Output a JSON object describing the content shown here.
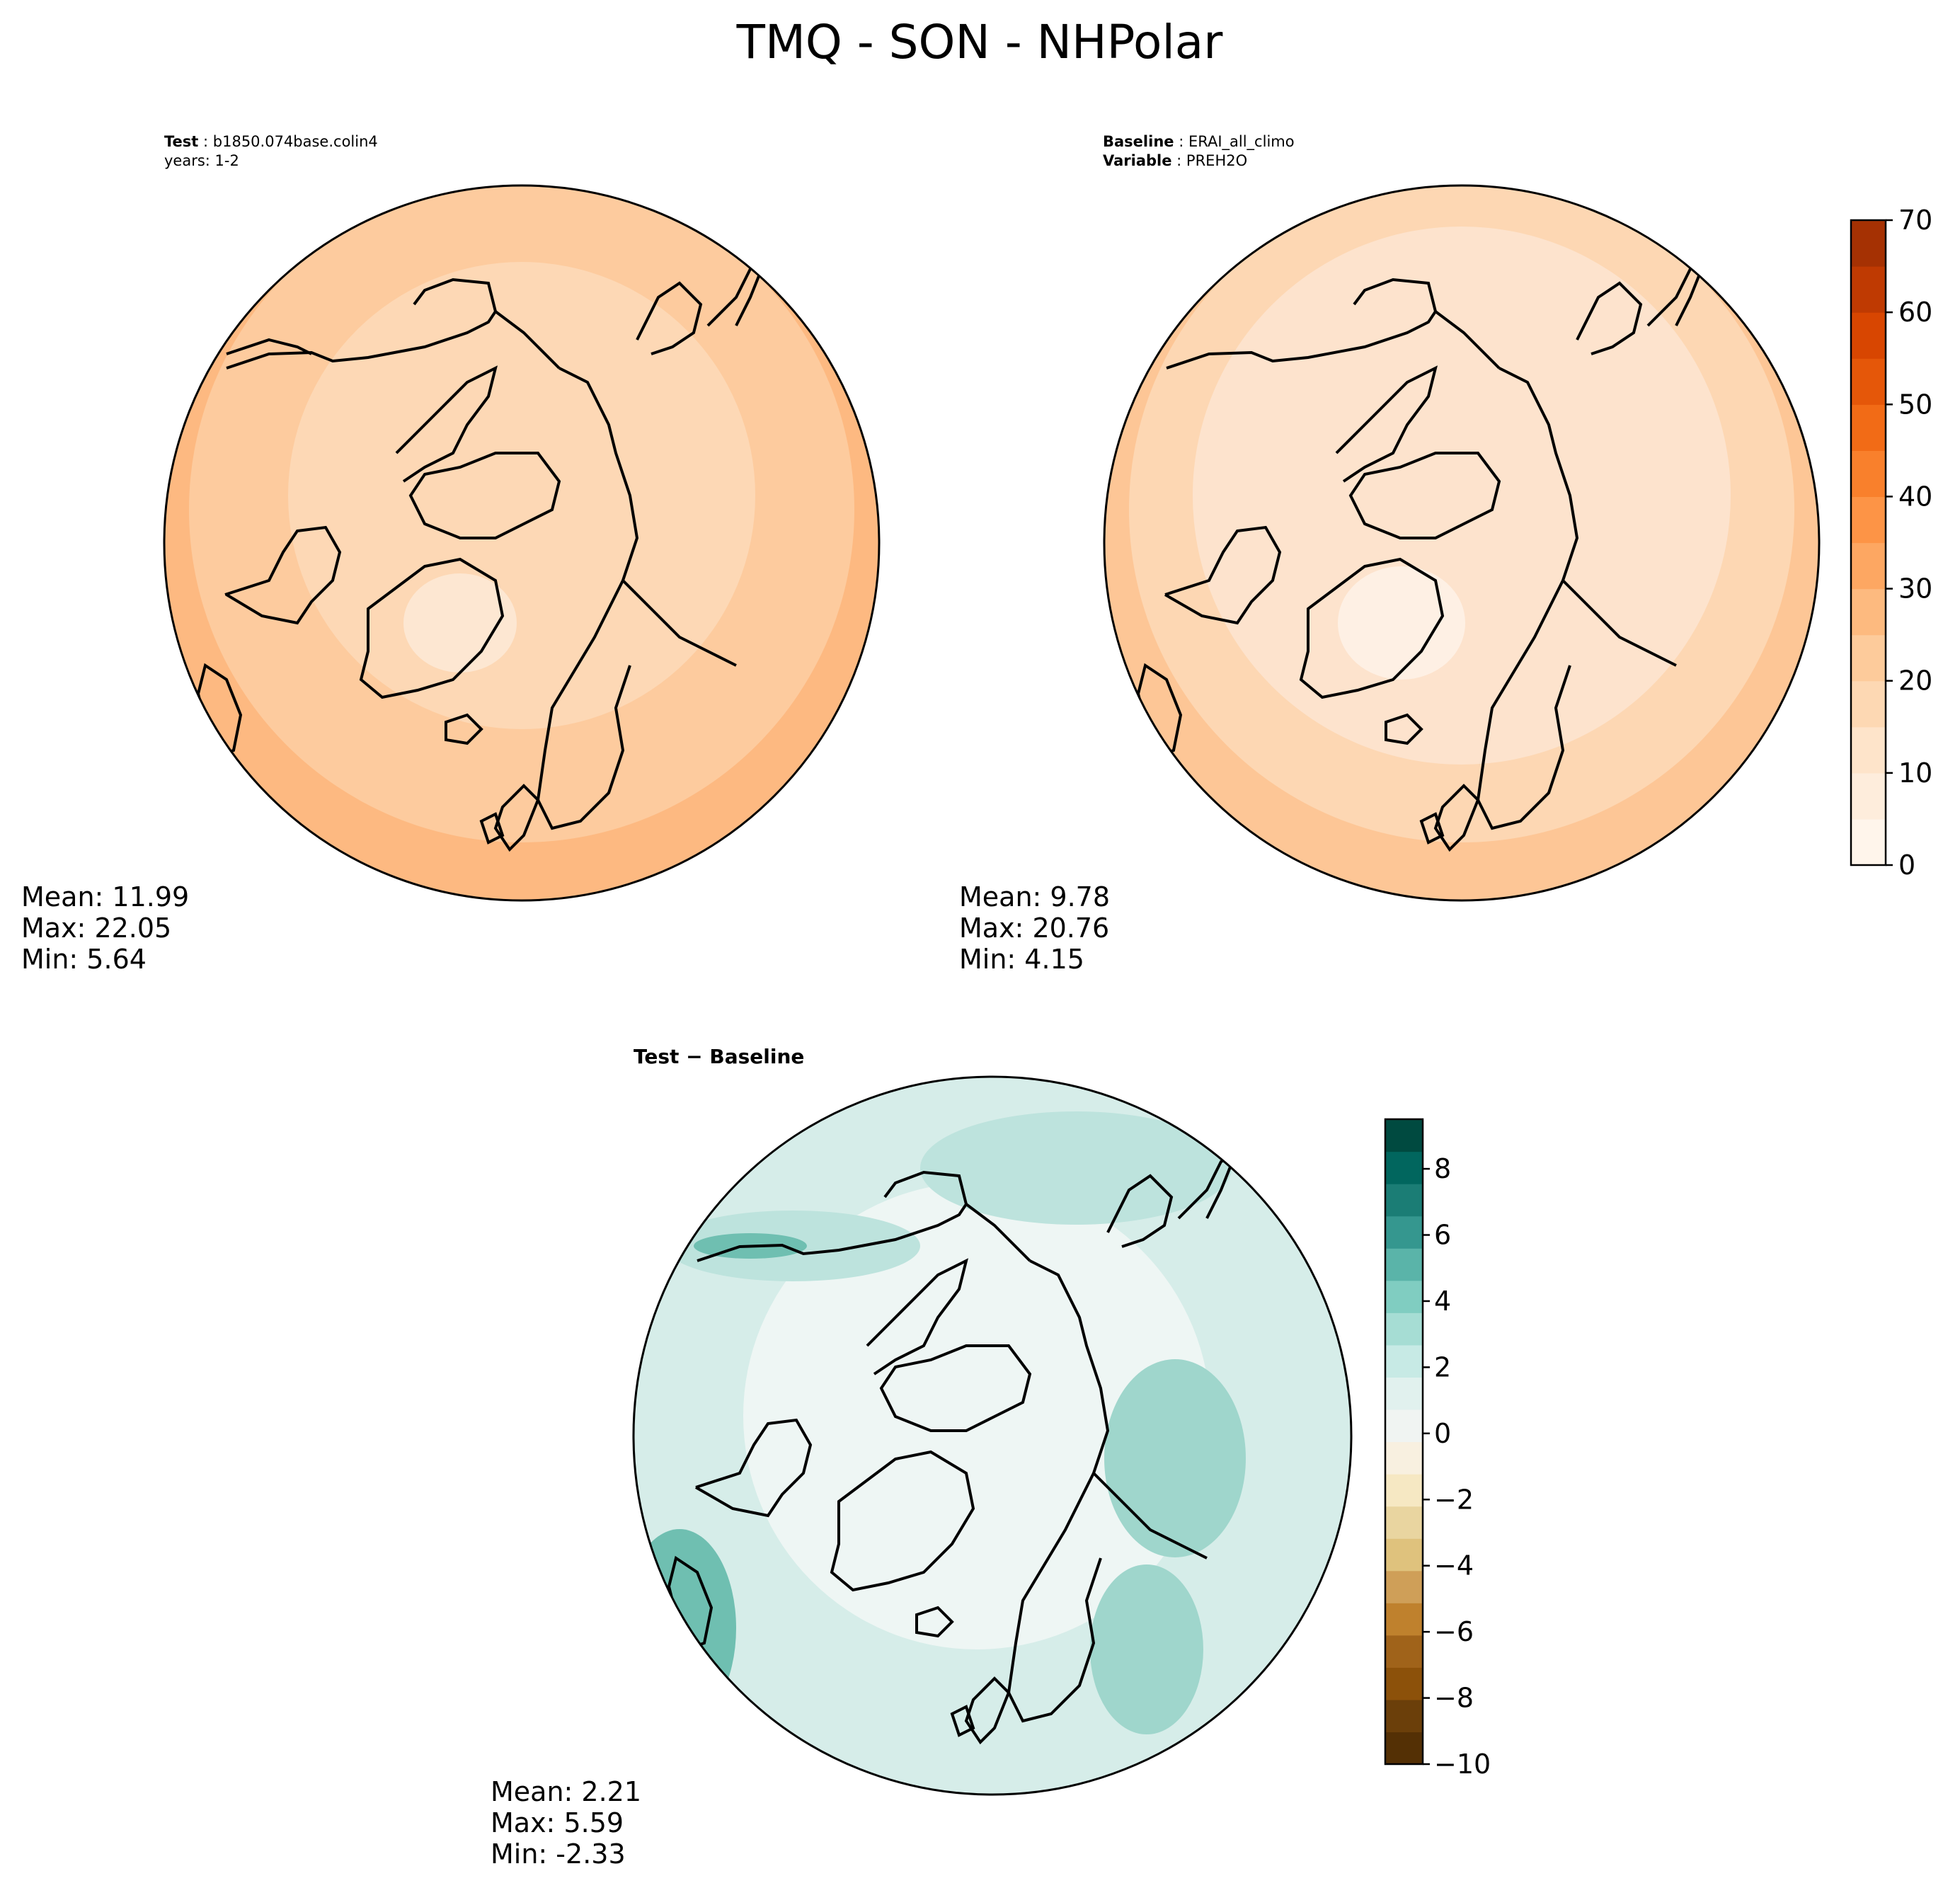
{
  "title": "TMQ - SON - NHPolar",
  "panels": {
    "test": {
      "label_key": "Test",
      "label_value": "b1850.074base.colin4",
      "years_line": "years: 1-2",
      "stats": [
        "Mean: 11.99",
        "Max: 22.05",
        "Min:  5.64"
      ],
      "fill_levels": [
        "#fde7d2",
        "#fdd8b5",
        "#fdcb9e",
        "#fdb981"
      ]
    },
    "baseline": {
      "label_key": "Baseline",
      "label_value": "ERAI_all_climo",
      "variable_key": "Variable",
      "variable_value": "PREH2O",
      "stats": [
        "Mean:  9.78",
        "Max: 20.76",
        "Min:  4.15"
      ],
      "fill_levels": [
        "#fef0e4",
        "#fde3cd",
        "#fdd7b3",
        "#fdc696"
      ]
    },
    "diff": {
      "label": "Test − Baseline",
      "stats": [
        "Mean:  2.21",
        "Max:  5.59",
        "Min: -2.33"
      ],
      "fill_levels": [
        "#eef6f4",
        "#d6ede9",
        "#bde3dd",
        "#9fd6cc",
        "#6fbfb1"
      ]
    }
  },
  "colorbar_main": {
    "ticks": [
      "0",
      "10",
      "20",
      "30",
      "40",
      "50",
      "60",
      "70"
    ],
    "range": [
      0,
      70
    ],
    "levels": 14,
    "colormap": "Oranges",
    "colors": [
      "#fff5eb",
      "#feeddc",
      "#fee4ca",
      "#fdd8b3",
      "#fdcb9b",
      "#fdba7f",
      "#fda762",
      "#fd9446",
      "#f9802c",
      "#f26b16",
      "#e55709",
      "#d84601",
      "#bf3a02",
      "#a53103"
    ]
  },
  "colorbar_diff": {
    "ticks": [
      "8",
      "6",
      "4",
      "2",
      "0",
      "−2",
      "−4",
      "−6",
      "−8",
      "−10"
    ],
    "tick_values": [
      8,
      6,
      4,
      2,
      0,
      -2,
      -4,
      -6,
      -8,
      -10
    ],
    "range": [
      -10,
      9.5
    ],
    "levels": 20,
    "colormap": "BrBG",
    "colors_low_to_high": [
      "#543005",
      "#6b3f0a",
      "#8c510a",
      "#a0631a",
      "#bf812d",
      "#cf9f58",
      "#dfc27d",
      "#e9d5a0",
      "#f6e8c3",
      "#f8f0e0",
      "#f0f4f2",
      "#e1f1ee",
      "#c7eae5",
      "#a6ddd4",
      "#80cdc1",
      "#5ab4a9",
      "#35978f",
      "#1b7d75",
      "#01665e",
      "#004a40"
    ]
  }
}
